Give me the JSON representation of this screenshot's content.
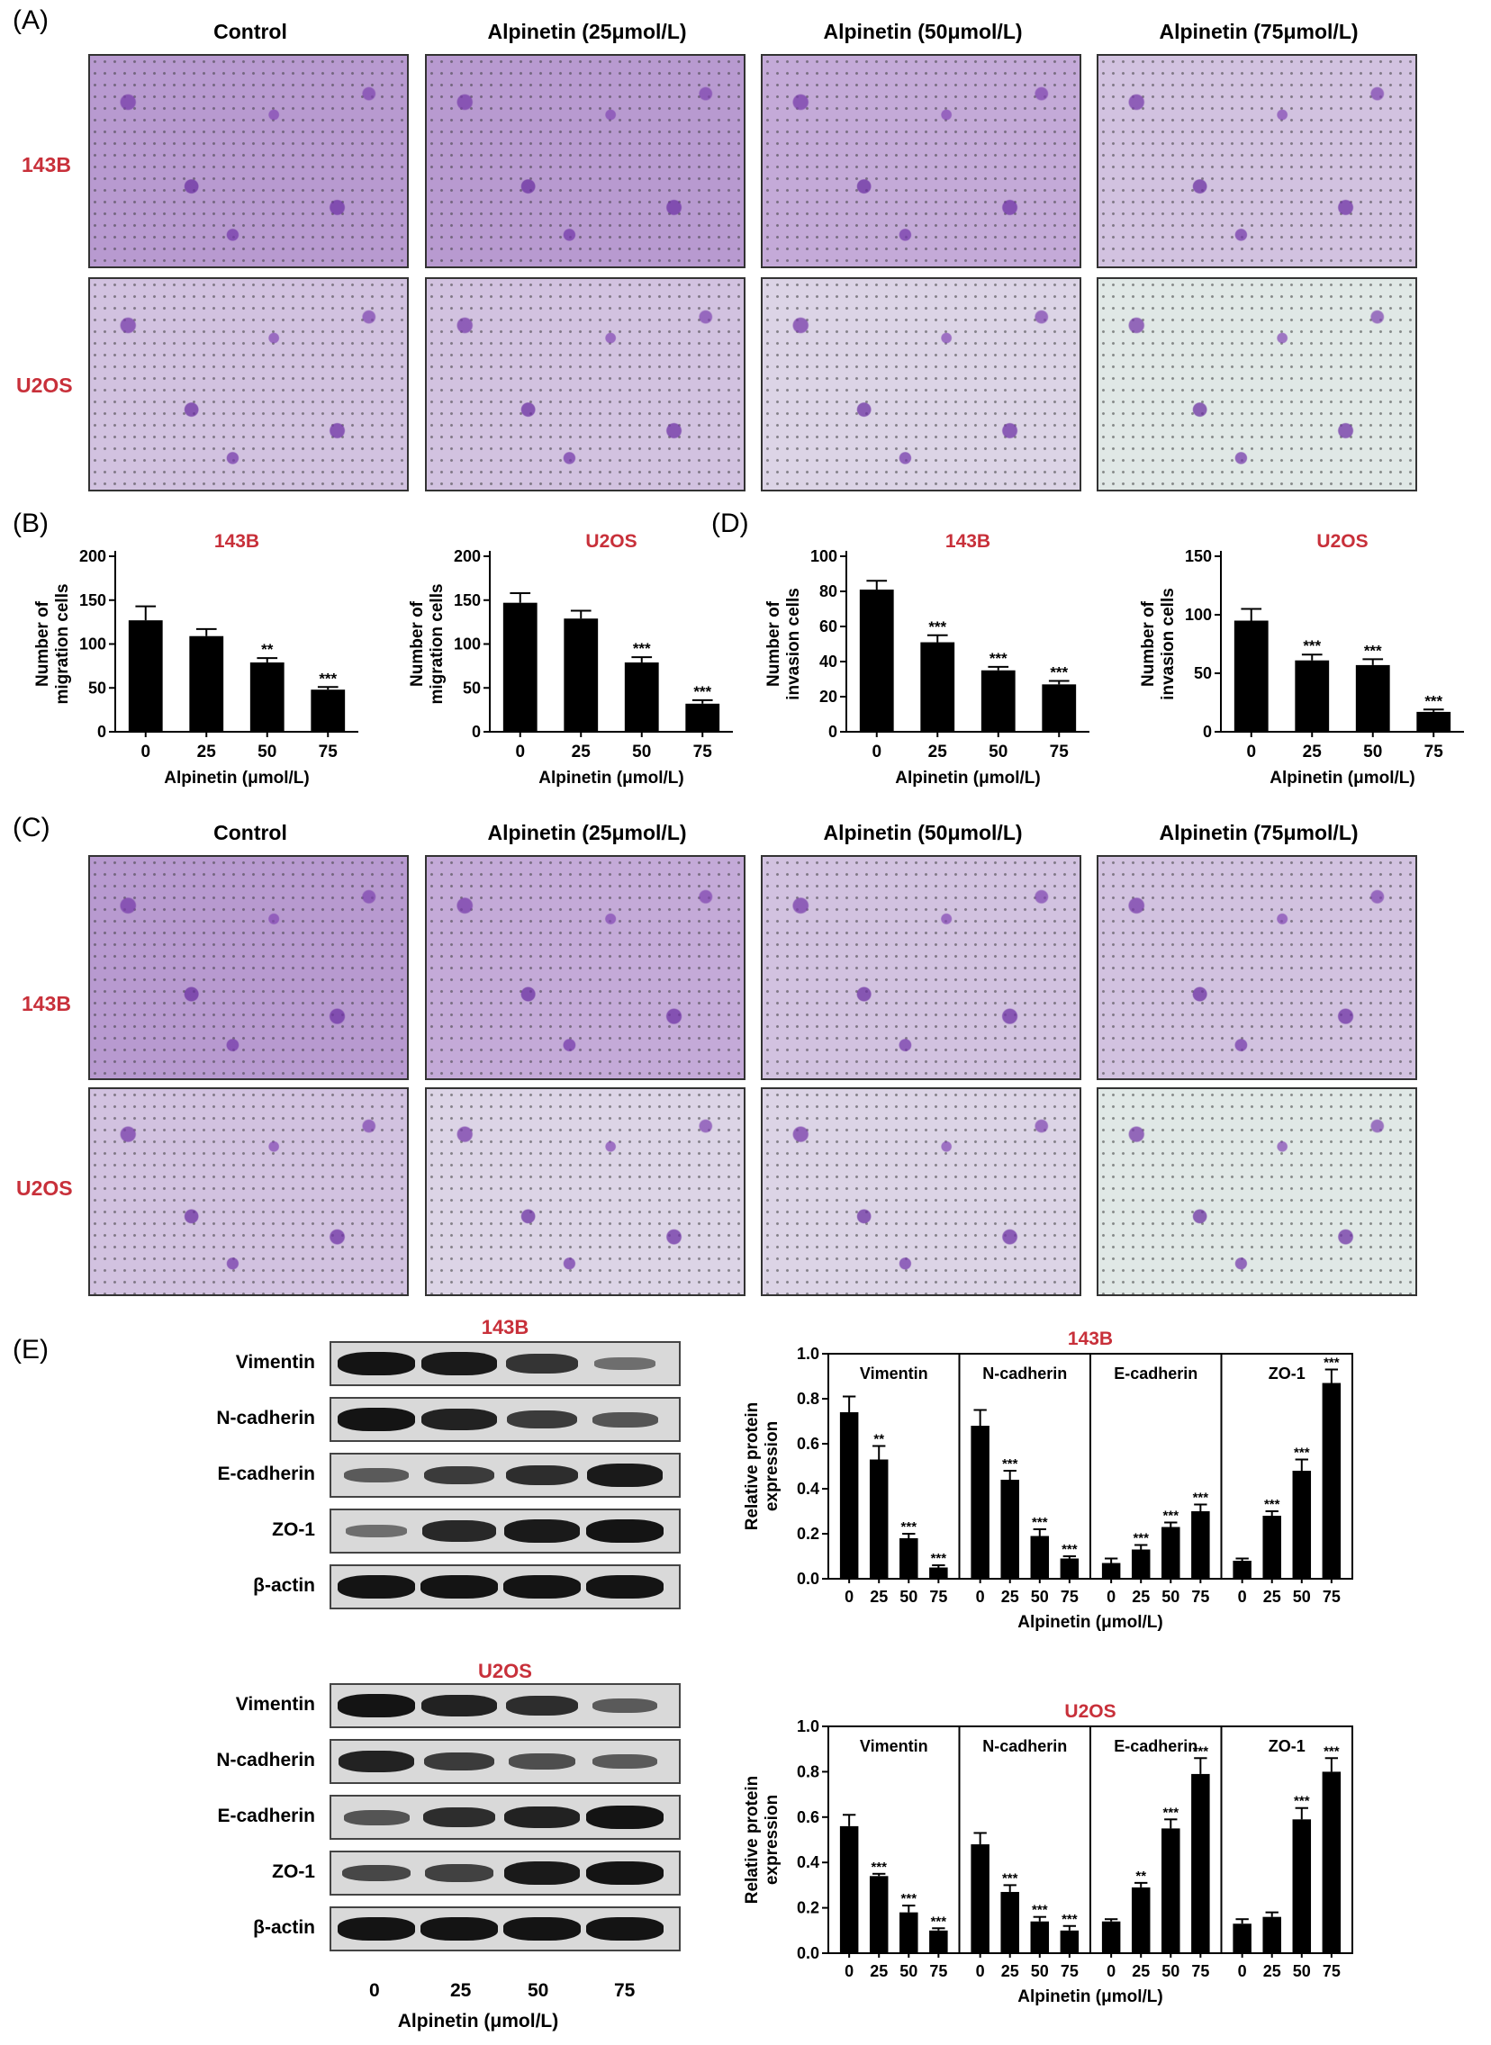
{
  "panel_labels": {
    "a": "(A)",
    "b": "(B)",
    "c": "(C)",
    "d": "(D)",
    "e": "(E)"
  },
  "micro_columns": [
    "Control",
    "Alpinetin (25μmol/L)",
    "Alpinetin (50μmol/L)",
    "Alpinetin (75μmol/L)"
  ],
  "micro_rows": [
    "143B",
    "U2OS"
  ],
  "blot_proteins": [
    "Vimentin",
    "N-cadherin",
    "E-cadherin",
    "ZO-1",
    "β-actin"
  ],
  "blot_titles": {
    "top": "143B",
    "bottom": "U2OS"
  },
  "blot_lane_labels": [
    "0",
    "25",
    "50",
    "75"
  ],
  "blot_xlabel": "Alpinetin (μmol/L)",
  "blot_band_intensity": {
    "143B": [
      [
        1.0,
        0.95,
        0.75,
        0.3
      ],
      [
        1.0,
        0.9,
        0.7,
        0.5
      ],
      [
        0.45,
        0.7,
        0.8,
        0.95
      ],
      [
        0.3,
        0.85,
        0.95,
        1.0
      ],
      [
        1,
        1,
        1,
        1
      ]
    ],
    "U2OS": [
      [
        1.0,
        0.9,
        0.8,
        0.45
      ],
      [
        0.9,
        0.7,
        0.55,
        0.45
      ],
      [
        0.5,
        0.8,
        0.9,
        1.0
      ],
      [
        0.6,
        0.65,
        0.95,
        1.0
      ],
      [
        1,
        1,
        1,
        1
      ]
    ]
  },
  "chart_data": [
    {
      "id": "b1",
      "type": "bar",
      "title": "143B",
      "categories": [
        "0",
        "25",
        "50",
        "75"
      ],
      "values": [
        127,
        109,
        79,
        48
      ],
      "errors": [
        16,
        8,
        5,
        3
      ],
      "annotations": [
        "",
        "",
        "**",
        "***"
      ],
      "ylabel": "Number of\nmigration cells",
      "xlabel": "Alpinetin (μmol/L)",
      "ylim": [
        0,
        200
      ],
      "yticks": [
        0,
        50,
        100,
        150,
        200
      ]
    },
    {
      "id": "b2",
      "type": "bar",
      "title": "U2OS",
      "categories": [
        "0",
        "25",
        "50",
        "75"
      ],
      "values": [
        147,
        129,
        79,
        32
      ],
      "errors": [
        11,
        9,
        6,
        4
      ],
      "annotations": [
        "",
        "",
        "***",
        "***"
      ],
      "ylabel": "Number of\nmigration cells",
      "xlabel": "Alpinetin (μmol/L)",
      "ylim": [
        0,
        200
      ],
      "yticks": [
        0,
        50,
        100,
        150,
        200
      ]
    },
    {
      "id": "d1",
      "type": "bar",
      "title": "143B",
      "categories": [
        "0",
        "25",
        "50",
        "75"
      ],
      "values": [
        81,
        51,
        35,
        27
      ],
      "errors": [
        5,
        4,
        2,
        2
      ],
      "annotations": [
        "",
        "***",
        "***",
        "***"
      ],
      "ylabel": "Number of\ninvasion cells",
      "xlabel": "Alpinetin (μmol/L)",
      "ylim": [
        0,
        100
      ],
      "yticks": [
        0,
        20,
        40,
        60,
        80,
        100
      ]
    },
    {
      "id": "d2",
      "type": "bar",
      "title": "U2OS",
      "categories": [
        "0",
        "25",
        "50",
        "75"
      ],
      "values": [
        95,
        61,
        57,
        17
      ],
      "errors": [
        10,
        5,
        5,
        2
      ],
      "annotations": [
        "",
        "***",
        "***",
        "***"
      ],
      "ylabel": "Number of\ninvasion cells",
      "xlabel": "Alpinetin (μmol/L)",
      "ylim": [
        0,
        150
      ],
      "yticks": [
        0,
        50,
        100,
        150
      ]
    },
    {
      "id": "e1",
      "type": "bar",
      "title": "143B",
      "groups": [
        "Vimentin",
        "N-cadherin",
        "E-cadherin",
        "ZO-1"
      ],
      "categories": [
        "0",
        "25",
        "50",
        "75"
      ],
      "values": [
        [
          0.74,
          0.53,
          0.18,
          0.05
        ],
        [
          0.68,
          0.44,
          0.19,
          0.09
        ],
        [
          0.07,
          0.13,
          0.23,
          0.3
        ],
        [
          0.08,
          0.28,
          0.48,
          0.87
        ]
      ],
      "errors": [
        [
          0.07,
          0.06,
          0.02,
          0.01
        ],
        [
          0.07,
          0.04,
          0.03,
          0.01
        ],
        [
          0.02,
          0.02,
          0.02,
          0.03
        ],
        [
          0.01,
          0.02,
          0.05,
          0.06
        ]
      ],
      "annotations": [
        [
          "",
          "**",
          "***",
          "***"
        ],
        [
          "",
          "***",
          "***",
          "***"
        ],
        [
          "",
          "***",
          "***",
          "***"
        ],
        [
          "",
          "***",
          "***",
          "***"
        ]
      ],
      "ylabel": "Relative protein\nexpression",
      "xlabel": "Alpinetin (μmol/L)",
      "ylim": [
        0,
        1.0
      ],
      "yticks": [
        0.0,
        0.2,
        0.4,
        0.6,
        0.8,
        1.0
      ]
    },
    {
      "id": "e2",
      "type": "bar",
      "title": "U2OS",
      "groups": [
        "Vimentin",
        "N-cadherin",
        "E-cadherin",
        "ZO-1"
      ],
      "categories": [
        "0",
        "25",
        "50",
        "75"
      ],
      "values": [
        [
          0.56,
          0.34,
          0.18,
          0.1
        ],
        [
          0.48,
          0.27,
          0.14,
          0.1
        ],
        [
          0.14,
          0.29,
          0.55,
          0.79
        ],
        [
          0.13,
          0.16,
          0.59,
          0.8
        ]
      ],
      "errors": [
        [
          0.05,
          0.01,
          0.03,
          0.01
        ],
        [
          0.05,
          0.03,
          0.02,
          0.02
        ],
        [
          0.01,
          0.02,
          0.04,
          0.07
        ],
        [
          0.02,
          0.02,
          0.05,
          0.06
        ]
      ],
      "annotations": [
        [
          "",
          "***",
          "***",
          "***"
        ],
        [
          "",
          "***",
          "***",
          "***"
        ],
        [
          "",
          "**",
          "***",
          "***"
        ],
        [
          "",
          "",
          "***",
          "***"
        ]
      ],
      "ylabel": "Relative protein\nexpression",
      "xlabel": "Alpinetin (μmol/L)",
      "ylim": [
        0,
        1.0
      ],
      "yticks": [
        0.0,
        0.2,
        0.4,
        0.6,
        0.8,
        1.0
      ]
    }
  ]
}
